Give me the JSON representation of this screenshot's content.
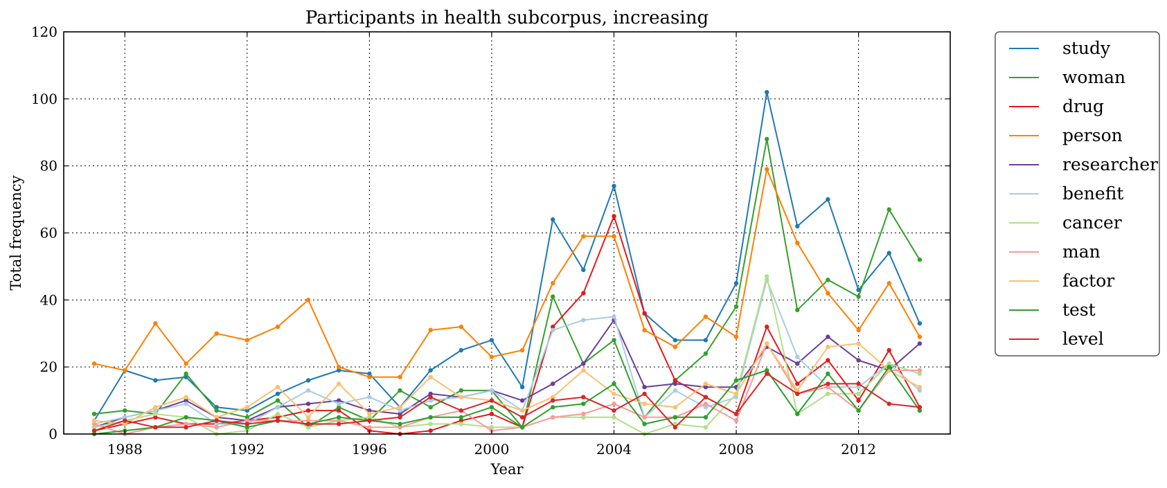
{
  "chart_data": {
    "type": "line",
    "title": "Participants in health subcorpus, increasing",
    "xlabel": "Year",
    "ylabel": "Total frequency",
    "xlim": [
      1986,
      2015
    ],
    "ylim": [
      0,
      120
    ],
    "xticks": [
      1988,
      1992,
      1996,
      2000,
      2004,
      2008,
      2012
    ],
    "yticks": [
      0,
      20,
      40,
      60,
      80,
      100,
      120
    ],
    "grid": true,
    "legend_position": "outside-right",
    "x": [
      1987,
      1988,
      1989,
      1990,
      1991,
      1992,
      1993,
      1994,
      1995,
      1996,
      1997,
      1998,
      1999,
      2000,
      2001,
      2002,
      2003,
      2004,
      2005,
      2006,
      2007,
      2008,
      2009,
      2010,
      2011,
      2012,
      2013,
      2014
    ],
    "series": [
      {
        "name": "study",
        "color": "#1f78b4",
        "values": [
          4,
          19,
          16,
          17,
          8,
          7,
          12,
          16,
          19,
          18,
          8,
          19,
          25,
          28,
          14,
          64,
          49,
          74,
          36,
          28,
          28,
          45,
          102,
          62,
          70,
          43,
          54,
          33
        ]
      },
      {
        "name": "woman",
        "color": "#33a02c",
        "values": [
          6,
          7,
          6,
          18,
          7,
          5,
          10,
          2,
          8,
          4,
          13,
          8,
          13,
          13,
          2,
          41,
          21,
          28,
          5,
          16,
          24,
          38,
          88,
          37,
          46,
          41,
          67,
          52
        ]
      },
      {
        "name": "drug",
        "color": "#e31a1c",
        "values": [
          1,
          3,
          5,
          3,
          3,
          4,
          5,
          7,
          7,
          1,
          0,
          1,
          4,
          6,
          2,
          32,
          42,
          65,
          36,
          16,
          11,
          6,
          32,
          15,
          22,
          10,
          25,
          8
        ]
      },
      {
        "name": "person",
        "color": "#ff7f00",
        "values": [
          21,
          19,
          33,
          21,
          30,
          28,
          32,
          40,
          20,
          17,
          17,
          31,
          32,
          23,
          25,
          45,
          59,
          59,
          31,
          26,
          35,
          29,
          79,
          57,
          42,
          31,
          45,
          29
        ]
      },
      {
        "name": "researcher",
        "color": "#6a3d9a",
        "values": [
          2,
          5,
          7,
          10,
          5,
          4,
          8,
          9,
          10,
          7,
          6,
          12,
          11,
          13,
          10,
          15,
          21,
          34,
          14,
          15,
          14,
          14,
          26,
          21,
          29,
          22,
          19,
          27
        ]
      },
      {
        "name": "benefit",
        "color": "#a6cee3",
        "values": [
          3,
          5,
          7,
          9,
          3,
          3,
          8,
          13,
          9,
          11,
          7,
          10,
          11,
          13,
          7,
          31,
          34,
          35,
          5,
          13,
          8,
          11,
          46,
          23,
          14,
          14,
          21,
          13
        ]
      },
      {
        "name": "cancer",
        "color": "#b2df8a",
        "values": [
          2,
          4,
          6,
          5,
          0,
          1,
          6,
          2,
          4,
          5,
          2,
          3,
          3,
          2,
          2,
          5,
          5,
          5,
          0,
          3,
          2,
          12,
          47,
          6,
          12,
          12,
          21,
          18
        ]
      },
      {
        "name": "man",
        "color": "#fb9a99",
        "values": [
          3,
          0,
          2,
          3,
          2,
          4,
          4,
          4,
          4,
          2,
          2,
          5,
          7,
          1,
          2,
          5,
          6,
          9,
          5,
          5,
          9,
          4,
          27,
          12,
          14,
          7,
          19,
          19
        ]
      },
      {
        "name": "factor",
        "color": "#fdbf6f",
        "values": [
          4,
          3,
          8,
          11,
          5,
          8,
          14,
          5,
          15,
          6,
          8,
          17,
          11,
          10,
          7,
          11,
          19,
          12,
          9,
          8,
          15,
          12,
          27,
          13,
          26,
          27,
          19,
          14
        ]
      },
      {
        "name": "test",
        "color": "#2ca02c",
        "values": [
          0,
          1,
          2,
          5,
          4,
          2,
          4,
          3,
          5,
          4,
          3,
          5,
          5,
          8,
          2,
          8,
          9,
          15,
          3,
          5,
          5,
          16,
          19,
          6,
          18,
          7,
          20,
          7
        ]
      },
      {
        "name": "level",
        "color": "#d62728",
        "values": [
          1,
          4,
          2,
          2,
          4,
          3,
          4,
          3,
          3,
          4,
          5,
          11,
          7,
          10,
          5,
          10,
          11,
          7,
          12,
          2,
          11,
          6,
          18,
          12,
          15,
          15,
          9,
          8
        ]
      }
    ]
  }
}
